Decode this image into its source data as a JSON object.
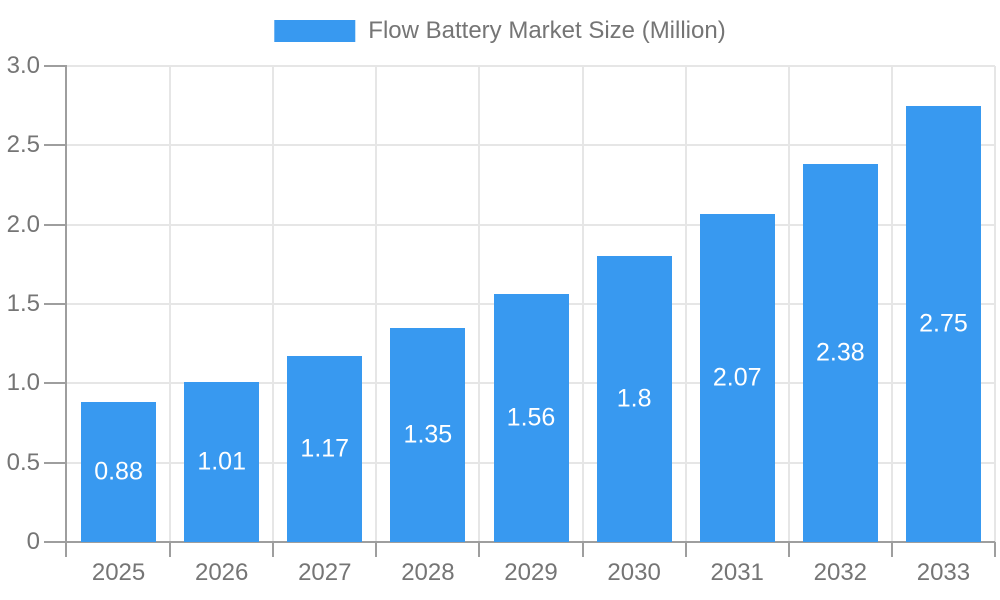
{
  "chart_data": {
    "type": "bar",
    "title": "Flow Battery Market Size (Million)",
    "categories": [
      "2025",
      "2026",
      "2027",
      "2028",
      "2029",
      "2030",
      "2031",
      "2032",
      "2033"
    ],
    "values": [
      0.88,
      1.01,
      1.17,
      1.35,
      1.56,
      1.8,
      2.07,
      2.38,
      2.75
    ],
    "bar_labels": [
      "0.88",
      "1.01",
      "1.17",
      "1.35",
      "1.56",
      "1.8",
      "2.07",
      "2.38",
      "2.75"
    ],
    "xlabel": "",
    "ylabel": "",
    "ylim": [
      0,
      3
    ],
    "ytick_values": [
      0,
      0.5,
      1,
      1.5,
      2,
      2.5,
      3
    ],
    "ytick_labels": [
      "0",
      "0.5",
      "1.0",
      "1.5",
      "2.0",
      "2.5",
      "3.0"
    ],
    "grid": true,
    "legend_position": "top",
    "colors": {
      "bar": "#3899F0",
      "bar_label_text": "#FFFFFF",
      "axis_text": "#757575",
      "gridline": "#E6E6E6",
      "axis_line": "#9E9E9E",
      "background": "#FFFFFF"
    }
  }
}
